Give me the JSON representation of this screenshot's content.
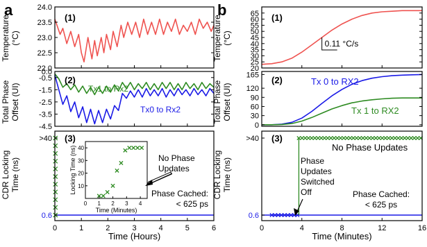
{
  "figure": {
    "panel_letters": [
      "a",
      "b"
    ],
    "shared_ylabels": {
      "temperature": [
        "Temperature",
        "(°C)"
      ],
      "phase": [
        "Total Phase",
        "Offset (UI)"
      ],
      "locking": [
        "CDR Locking",
        "Time (ns)"
      ]
    },
    "colors": {
      "temperature": "#ef5350",
      "tx1": "#2e8b22",
      "tx0": "#1a1ae6",
      "locking_points": "#2e8b22",
      "baseline": "#1a1ae6",
      "arrow_fill": "#ffffff"
    }
  },
  "chart_data": [
    {
      "id": "a1",
      "type": "line",
      "panel_label": "(1)",
      "xlim": [
        0,
        6
      ],
      "ylim": [
        22.0,
        24.0
      ],
      "yticks": [
        "22.0",
        "22.5",
        "23.0",
        "23.5",
        "24.0"
      ],
      "series": [
        {
          "color_key": "temperature",
          "x": [
            0,
            0.2,
            0.3,
            0.45,
            0.6,
            0.75,
            0.9,
            1.0,
            1.1,
            1.25,
            1.4,
            1.5,
            1.6,
            1.75,
            1.85,
            1.95,
            2.1,
            2.2,
            2.35,
            2.5,
            2.6,
            2.75,
            2.9,
            3.05,
            3.2,
            3.35,
            3.5,
            3.65,
            3.8,
            3.95,
            4.1,
            4.25,
            4.4,
            4.55,
            4.7,
            4.85,
            5.0,
            5.15,
            5.3,
            5.45,
            5.6,
            5.75,
            5.9,
            6.0
          ],
          "y": [
            23.6,
            23.1,
            23.3,
            22.8,
            23.2,
            22.7,
            23.1,
            22.5,
            22.2,
            23.0,
            22.3,
            22.9,
            22.4,
            23.0,
            22.5,
            23.1,
            22.6,
            23.2,
            22.7,
            23.4,
            23.0,
            23.5,
            23.1,
            23.5,
            23.0,
            23.6,
            23.1,
            23.5,
            23.1,
            23.6,
            23.1,
            23.5,
            23.2,
            23.6,
            23.1,
            23.4,
            23.2,
            23.5,
            23.1,
            23.6,
            23.3,
            23.5,
            23.2,
            23.4
          ]
        }
      ]
    },
    {
      "id": "a2",
      "type": "line",
      "panel_label": "(2)",
      "xlim": [
        0,
        6
      ],
      "ylim": [
        -4.5,
        0.0
      ],
      "yticks": [
        "-4.5",
        "-3.5",
        "-2.5",
        "-1.5",
        "-0.5",
        "0.0"
      ],
      "series": [
        {
          "name": "Tx1 to Rx2",
          "color_key": "tx1",
          "x": [
            0,
            0.15,
            0.3,
            0.45,
            0.6,
            0.75,
            0.9,
            1.05,
            1.2,
            1.35,
            1.5,
            1.65,
            1.8,
            1.95,
            2.1,
            2.25,
            2.4,
            2.55,
            2.7,
            2.85,
            3.0,
            3.15,
            3.3,
            3.45,
            3.6,
            3.75,
            3.9,
            4.05,
            4.2,
            4.35,
            4.5,
            4.65,
            4.8,
            4.95,
            5.1,
            5.25,
            5.4,
            5.55,
            5.7,
            5.85,
            6.0
          ],
          "y": [
            -0.2,
            -0.6,
            -1.3,
            -1.0,
            -1.5,
            -1.1,
            -1.7,
            -1.2,
            -1.8,
            -1.3,
            -1.9,
            -1.3,
            -1.8,
            -1.2,
            -1.7,
            -1.1,
            -1.6,
            -0.9,
            -1.4,
            -0.9,
            -1.5,
            -1.0,
            -1.4,
            -0.9,
            -1.5,
            -1.0,
            -1.5,
            -0.9,
            -1.4,
            -0.9,
            -1.5,
            -1.0,
            -1.5,
            -0.9,
            -1.4,
            -1.0,
            -1.5,
            -0.9,
            -1.4,
            -1.0,
            -1.3
          ]
        },
        {
          "name": "Tx0 to Rx2",
          "color_key": "tx0",
          "x": [
            0,
            0.15,
            0.3,
            0.45,
            0.6,
            0.75,
            0.9,
            1.05,
            1.2,
            1.35,
            1.5,
            1.65,
            1.8,
            1.95,
            2.1,
            2.25,
            2.4,
            2.55,
            2.7,
            2.85,
            3.0,
            3.15,
            3.3,
            3.45,
            3.6,
            3.75,
            3.9,
            4.05,
            4.2,
            4.35,
            4.5,
            4.65,
            4.8,
            4.95,
            5.1,
            5.25,
            5.4,
            5.55,
            5.7,
            5.85,
            6.0
          ],
          "y": [
            -0.3,
            -1.5,
            -2.7,
            -2.0,
            -3.3,
            -2.5,
            -3.8,
            -2.9,
            -4.2,
            -3.1,
            -4.3,
            -3.2,
            -4.2,
            -3.1,
            -3.9,
            -2.8,
            -3.2,
            -1.8,
            -2.2,
            -1.6,
            -2.1,
            -1.5,
            -2.1,
            -1.4,
            -2.0,
            -1.5,
            -2.0,
            -1.4,
            -2.1,
            -1.5,
            -2.0,
            -1.4,
            -1.9,
            -1.5,
            -2.0,
            -1.4,
            -1.9,
            -1.5,
            -2.0,
            -1.4,
            -1.8
          ]
        }
      ]
    },
    {
      "id": "a3",
      "type": "scatter",
      "panel_label": "(3)",
      "xlim": [
        0,
        6
      ],
      "xticks": [
        "0",
        "1",
        "2",
        "3",
        "4",
        "5",
        "6"
      ],
      "xlabel": "Time (Hours)",
      "yticks": [
        "0.6",
        ">40"
      ],
      "baseline_value": 0.6,
      "points_y_fraction": [
        0.0,
        0.1,
        0.2,
        0.3,
        0.4,
        0.5,
        0.6,
        0.7,
        0.8,
        0.9,
        1.0
      ],
      "annotation": [
        "Phase Cached:",
        "< 625 ps"
      ],
      "inset": {
        "type": "scatter",
        "xlim": [
          0,
          4.5
        ],
        "ylim": [
          0,
          45
        ],
        "xticks": [
          "0",
          "1",
          "2",
          "3",
          "4"
        ],
        "yticks": [
          "10",
          "20",
          "30",
          "40"
        ],
        "xlabel": "Time (Minutes)",
        "ylabel": "Locking Time (ns)",
        "x": [
          1.0,
          1.3,
          1.6,
          2.0,
          2.3,
          2.6,
          2.9,
          3.2,
          3.5,
          3.8,
          4.1
        ],
        "y": [
          2,
          2,
          5,
          10,
          22,
          28,
          38,
          40,
          40,
          40,
          40
        ],
        "arrow_label": [
          "No Phase",
          "Updates"
        ]
      }
    },
    {
      "id": "b1",
      "type": "line",
      "panel_label": "(1)",
      "xlim": [
        0,
        16
      ],
      "ylim": [
        20,
        70
      ],
      "yticks": [
        "20",
        "25",
        "30",
        "35",
        "40",
        "45",
        "50",
        "55",
        "60",
        "65"
      ],
      "series": [
        {
          "color_key": "temperature",
          "x": [
            0,
            1,
            2,
            3,
            4,
            5,
            6,
            7,
            8,
            9,
            10,
            11,
            12,
            13,
            14,
            15,
            16
          ],
          "y": [
            23,
            23.5,
            25,
            28,
            33,
            39,
            45,
            51,
            56,
            60,
            63,
            65,
            66,
            66.5,
            67,
            67,
            67
          ]
        }
      ],
      "annotation": "0.11 °C/s"
    },
    {
      "id": "b2",
      "type": "line",
      "panel_label": "(2)",
      "xlim": [
        0,
        16
      ],
      "ylim": [
        -5,
        175
      ],
      "yticks": [
        "0",
        "30",
        "60",
        "90",
        "120",
        "165"
      ],
      "series": [
        {
          "name": "Tx 0 to RX2",
          "color_key": "tx0",
          "x": [
            0,
            1,
            2,
            3,
            4,
            5,
            6,
            7,
            8,
            9,
            10,
            11,
            12,
            13,
            14,
            15,
            16
          ],
          "y": [
            0,
            0,
            2,
            8,
            22,
            44,
            70,
            95,
            116,
            133,
            145,
            153,
            158,
            161,
            163,
            164,
            165
          ]
        },
        {
          "name": "Tx 1 to RX2",
          "color_key": "tx1",
          "x": [
            0,
            1,
            2,
            3,
            4,
            5,
            6,
            7,
            8,
            9,
            10,
            11,
            12,
            13,
            14,
            15,
            16
          ],
          "y": [
            0,
            0,
            1,
            4,
            12,
            24,
            38,
            52,
            63,
            72,
            78,
            82,
            85,
            87,
            88,
            88,
            88
          ]
        }
      ]
    },
    {
      "id": "b3",
      "type": "scatter",
      "panel_label": "(3)",
      "xlim": [
        0,
        16
      ],
      "xticks": [
        "0",
        "4",
        "8",
        "12",
        "16"
      ],
      "xlabel": "Time (Minutes)",
      "yticks": [
        "0.6",
        ">40"
      ],
      "low_value": 0.6,
      "high_value": 40,
      "switch_x": 3.7,
      "low_x_start": 1.0,
      "high_x_end": 16.0,
      "point_spacing": 0.32,
      "annotations": {
        "top": "No Phase Updates",
        "arrow_label": [
          "Phase",
          "Updates",
          "Switched",
          "Off"
        ],
        "cached": [
          "Phase Cached:",
          "< 625 ps"
        ]
      }
    }
  ]
}
